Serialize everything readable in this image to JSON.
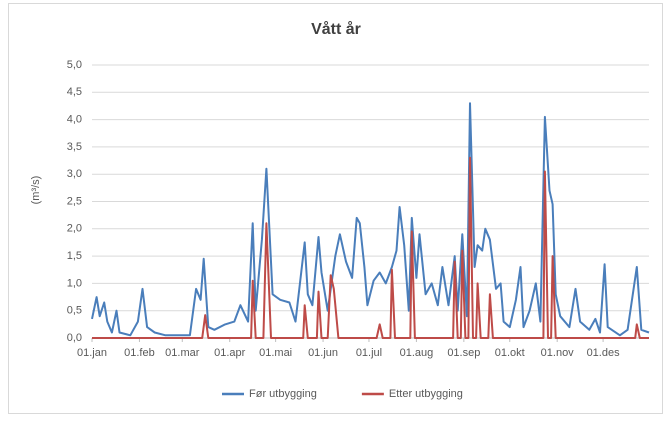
{
  "chart_data": {
    "type": "line",
    "title": "Vått år",
    "y_label": "(m³/s)",
    "xlim": [
      0,
      364
    ],
    "ylim": [
      0,
      5
    ],
    "xticks": [
      {
        "value": 0,
        "label": "01.jan"
      },
      {
        "value": 31,
        "label": "01.feb"
      },
      {
        "value": 59,
        "label": "01.mar"
      },
      {
        "value": 90,
        "label": "01.apr"
      },
      {
        "value": 120,
        "label": "01.mai"
      },
      {
        "value": 151,
        "label": "01.jun"
      },
      {
        "value": 181,
        "label": "01.jul"
      },
      {
        "value": 212,
        "label": "01.aug"
      },
      {
        "value": 243,
        "label": "01.sep"
      },
      {
        "value": 273,
        "label": "01.okt"
      },
      {
        "value": 304,
        "label": "01.nov"
      },
      {
        "value": 334,
        "label": "01.des"
      }
    ],
    "yticks": [
      {
        "value": 0,
        "label": "0,0"
      },
      {
        "value": 0.5,
        "label": "0,5"
      },
      {
        "value": 1,
        "label": "1,0"
      },
      {
        "value": 1.5,
        "label": "1,5"
      },
      {
        "value": 2,
        "label": "2,0"
      },
      {
        "value": 2.5,
        "label": "2,5"
      },
      {
        "value": 3,
        "label": "3,0"
      },
      {
        "value": 3.5,
        "label": "3,5"
      },
      {
        "value": 4,
        "label": "4,0"
      },
      {
        "value": 4.5,
        "label": "4,5"
      },
      {
        "value": 5,
        "label": "5,0"
      }
    ],
    "grid": true,
    "legend": "bottom",
    "series": [
      {
        "name": "Før utbygging",
        "color": "#4a7ebb",
        "x": [
          0,
          3,
          5,
          8,
          10,
          13,
          16,
          18,
          25,
          30,
          33,
          36,
          41,
          48,
          64,
          68,
          71,
          73,
          76,
          80,
          87,
          93,
          97,
          102,
          105,
          107,
          111,
          114,
          118,
          123,
          129,
          133,
          139,
          141,
          144,
          148,
          150,
          154,
          159,
          162,
          166,
          170,
          173,
          175,
          178,
          180,
          184,
          188,
          192,
          196,
          199,
          201,
          204,
          207,
          209,
          212,
          214,
          218,
          222,
          226,
          229,
          233,
          237,
          239,
          242,
          245,
          247,
          250,
          252,
          255,
          257,
          260,
          264,
          267,
          269,
          273,
          277,
          280,
          282,
          286,
          290,
          293,
          296,
          299,
          301,
          303,
          306,
          312,
          316,
          319,
          325,
          329,
          332,
          335,
          337,
          345,
          350,
          356,
          359,
          364
        ],
        "values": [
          0.35,
          0.75,
          0.4,
          0.65,
          0.3,
          0.1,
          0.5,
          0.1,
          0.05,
          0.3,
          0.9,
          0.2,
          0.1,
          0.05,
          0.05,
          0.9,
          0.7,
          1.45,
          0.2,
          0.15,
          0.25,
          0.3,
          0.6,
          0.3,
          2.1,
          0.5,
          1.8,
          3.1,
          0.8,
          0.7,
          0.65,
          0.3,
          1.75,
          0.8,
          0.6,
          1.85,
          1.2,
          0.5,
          1.5,
          1.9,
          1.4,
          1.1,
          2.2,
          2.1,
          1.3,
          0.6,
          1.05,
          1.2,
          1.0,
          1.3,
          1.6,
          2.4,
          1.7,
          0.5,
          2.2,
          1.1,
          1.9,
          0.8,
          1.0,
          0.6,
          1.3,
          0.6,
          1.5,
          0.5,
          1.9,
          0.4,
          4.3,
          1.3,
          1.7,
          1.6,
          2.0,
          1.8,
          0.9,
          1.0,
          0.3,
          0.2,
          0.7,
          1.3,
          0.2,
          0.5,
          1.0,
          0.3,
          4.05,
          2.7,
          2.45,
          0.8,
          0.4,
          0.2,
          0.9,
          0.3,
          0.15,
          0.35,
          0.1,
          1.35,
          0.2,
          0.05,
          0.15,
          1.3,
          0.15,
          0.1
        ]
      },
      {
        "name": "Etter utbygging",
        "color": "#be4b48",
        "x": [
          0,
          72,
          74,
          76,
          104,
          105,
          107,
          112,
          114,
          117,
          138,
          139,
          141,
          147,
          148,
          150,
          154,
          156,
          158,
          161,
          186,
          188,
          190,
          195,
          196,
          198,
          208,
          209,
          211,
          236,
          237,
          239,
          241,
          242,
          244,
          246,
          247,
          249,
          251,
          252,
          254,
          259,
          260,
          262,
          295,
          296,
          298,
          300,
          301,
          303,
          355,
          356,
          358,
          364
        ],
        "values": [
          0,
          0,
          0.42,
          0,
          0,
          1.05,
          0,
          0,
          2.1,
          0,
          0,
          0.6,
          0,
          0,
          0.85,
          0,
          0,
          1.15,
          0.9,
          0,
          0,
          0.25,
          0,
          0,
          1.25,
          0,
          0,
          1.95,
          0,
          0,
          1.4,
          0,
          0,
          1.6,
          0,
          0,
          3.3,
          0,
          0,
          1.0,
          0,
          0,
          0.8,
          0,
          0,
          3.05,
          0,
          0,
          1.5,
          0,
          0,
          0.25,
          0,
          0
        ]
      }
    ]
  }
}
